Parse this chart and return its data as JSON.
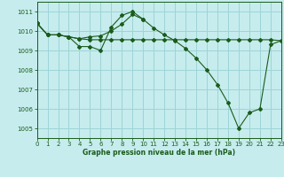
{
  "xlabel": "Graphe pression niveau de la mer (hPa)",
  "xlim": [
    0,
    23
  ],
  "ylim": [
    1004.5,
    1011.5
  ],
  "xticks": [
    0,
    1,
    2,
    3,
    4,
    5,
    6,
    7,
    8,
    9,
    10,
    11,
    12,
    13,
    14,
    15,
    16,
    17,
    18,
    19,
    20,
    21,
    22,
    23
  ],
  "yticks": [
    1005,
    1006,
    1007,
    1008,
    1009,
    1010,
    1011
  ],
  "bg_color": "#c6ecee",
  "grid_color": "#9dd4d6",
  "line_color": "#1a5c1a",
  "series": [
    {
      "x": [
        0,
        1,
        2,
        3,
        4,
        5,
        6,
        7,
        8,
        9,
        10,
        11,
        12,
        13,
        14,
        15,
        16,
        17,
        18,
        19,
        20,
        21,
        22,
        23
      ],
      "y": [
        1010.4,
        1009.8,
        1009.8,
        1009.7,
        1009.6,
        1009.55,
        1009.55,
        1009.55,
        1009.55,
        1009.55,
        1009.55,
        1009.55,
        1009.55,
        1009.55,
        1009.55,
        1009.55,
        1009.55,
        1009.55,
        1009.55,
        1009.55,
        1009.55,
        1009.55,
        1009.55,
        1009.5
      ]
    },
    {
      "x": [
        0,
        1,
        2,
        3,
        4,
        5,
        6,
        7,
        8,
        9,
        10,
        11,
        12,
        13,
        14,
        15,
        16,
        17,
        18,
        19,
        20,
        21,
        22,
        23
      ],
      "y": [
        1010.4,
        1009.8,
        1009.8,
        1009.7,
        1009.2,
        1009.2,
        1009.0,
        1010.2,
        1010.8,
        1011.0,
        1010.6,
        1010.15,
        1009.8,
        1009.5,
        1009.1,
        1008.6,
        1008.0,
        1007.25,
        1006.3,
        1005.0,
        1005.8,
        1006.0,
        1009.3,
        1009.5
      ]
    },
    {
      "x": [
        0,
        1,
        2,
        3,
        4,
        5,
        6,
        7,
        8,
        9,
        10
      ],
      "y": [
        1010.4,
        1009.8,
        1009.8,
        1009.7,
        1009.6,
        1009.7,
        1009.75,
        1010.0,
        1010.35,
        1010.85,
        1010.6
      ]
    }
  ]
}
